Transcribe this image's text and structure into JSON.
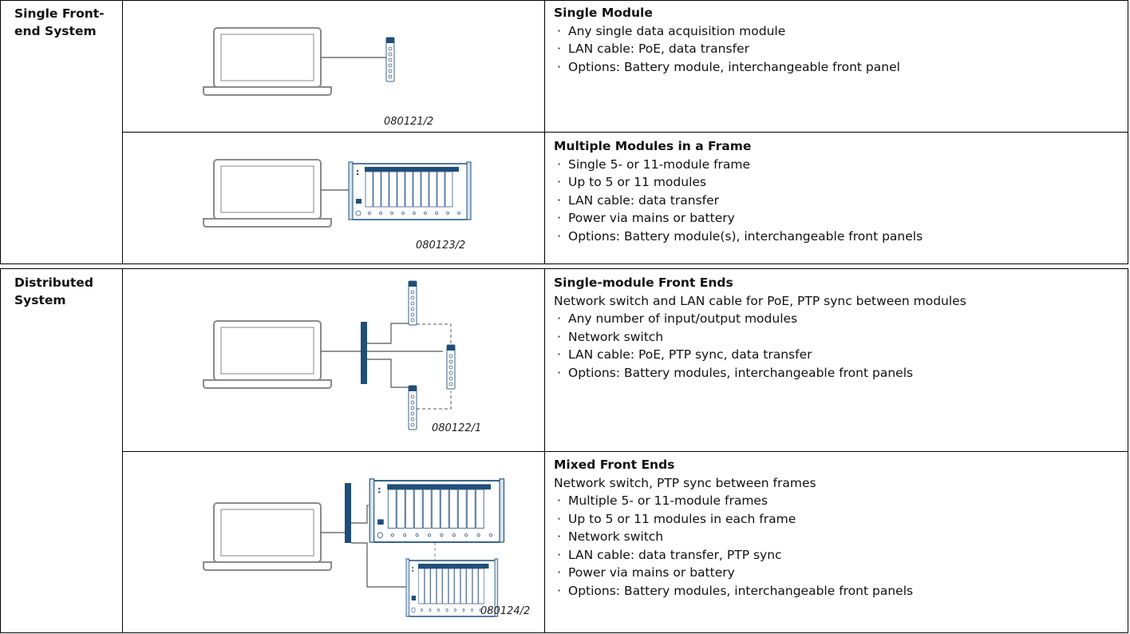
{
  "sections": [
    {
      "label": "Single Front-end System",
      "rows": [
        {
          "figure": "080121/2",
          "title": "Single Module",
          "bullets": [
            "Any single data acquisition module",
            "LAN cable: PoE, data transfer",
            "Options: Battery module, interchangeable front panel"
          ]
        },
        {
          "figure": "080123/2",
          "title": "Multiple Modules in a Frame",
          "bullets": [
            "Single 5- or 11-module frame",
            "Up to 5 or 11 modules",
            "LAN cable: data transfer",
            "Power via mains or battery",
            "Options: Battery module(s), interchangeable front panels"
          ]
        }
      ]
    },
    {
      "label": "Distributed System",
      "rows": [
        {
          "figure": "080122/1",
          "title": "Single-module Front Ends",
          "intro": "Network switch and LAN cable for PoE, PTP sync between modules",
          "bullets": [
            "Any number of input/output modules",
            "Network switch",
            "LAN cable: PoE, PTP sync, data transfer",
            "Options: Battery modules, interchangeable front panels"
          ]
        },
        {
          "figure": "080124/2",
          "title": "Mixed Front Ends",
          "intro": "Network switch, PTP sync between frames",
          "bullets": [
            "Multiple 5- or 11-module frames",
            "Up to 5 or 11 modules in each frame",
            "Network switch",
            "LAN cable: data transfer, PTP sync",
            "Power via mains or battery",
            "Options: Battery modules, interchangeable front panels"
          ]
        }
      ]
    }
  ]
}
